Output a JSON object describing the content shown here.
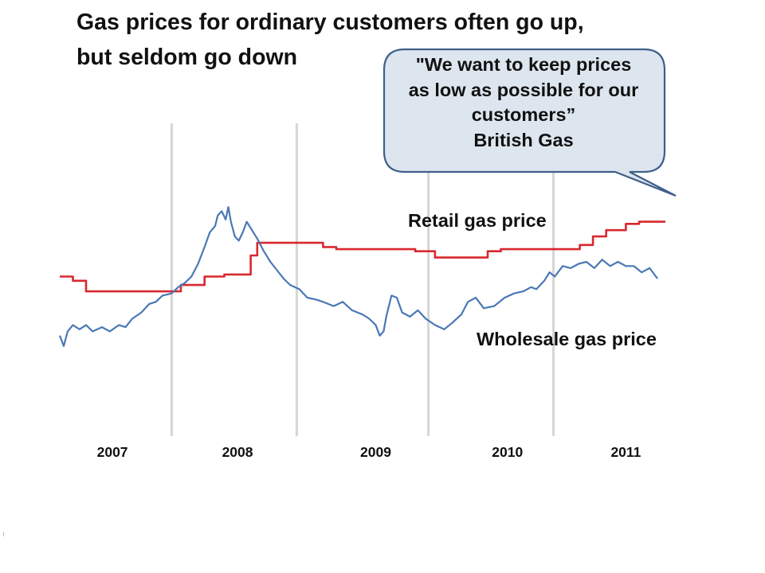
{
  "title": {
    "line1": "Gas prices for ordinary customers often go up,",
    "line2": "but seldom go down"
  },
  "callout": {
    "line1": "\"We want to keep prices",
    "line2": "as low as possible for our",
    "line3": "customers”",
    "line4": "British Gas",
    "fill": "#dde6ef",
    "border": "#3f5f8a"
  },
  "chart_data": {
    "type": "line",
    "x_unit": "year",
    "xlim": [
      2007.0,
      2011.6
    ],
    "ylim": [
      0,
      100
    ],
    "year_lines": [
      2007.85,
      2008.8,
      2009.8,
      2010.75
    ],
    "x_tick_labels": [
      {
        "x": 2007.4,
        "label": "2007"
      },
      {
        "x": 2008.35,
        "label": "2008"
      },
      {
        "x": 2009.4,
        "label": "2009"
      },
      {
        "x": 2010.4,
        "label": "2010"
      },
      {
        "x": 2011.3,
        "label": "2011"
      }
    ],
    "series": [
      {
        "name": "Retail gas price",
        "color": "#d8282f",
        "step": true,
        "points": [
          [
            2007.0,
            50
          ],
          [
            2007.1,
            48
          ],
          [
            2007.2,
            43
          ],
          [
            2007.35,
            43
          ],
          [
            2007.85,
            43
          ],
          [
            2007.92,
            46
          ],
          [
            2008.1,
            50
          ],
          [
            2008.25,
            51
          ],
          [
            2008.4,
            51
          ],
          [
            2008.45,
            60
          ],
          [
            2008.5,
            66
          ],
          [
            2008.9,
            66
          ],
          [
            2009.0,
            64
          ],
          [
            2009.1,
            63
          ],
          [
            2009.3,
            63
          ],
          [
            2009.7,
            62
          ],
          [
            2009.8,
            62
          ],
          [
            2009.85,
            59
          ],
          [
            2010.05,
            59
          ],
          [
            2010.2,
            59
          ],
          [
            2010.25,
            62
          ],
          [
            2010.35,
            63
          ],
          [
            2010.9,
            63
          ],
          [
            2010.95,
            65
          ],
          [
            2011.05,
            69
          ],
          [
            2011.15,
            72
          ],
          [
            2011.3,
            75
          ],
          [
            2011.4,
            76
          ],
          [
            2011.6,
            76
          ]
        ]
      },
      {
        "name": "Wholesale gas price",
        "color": "#4a78b5",
        "step": false,
        "points": [
          [
            2007.0,
            22
          ],
          [
            2007.03,
            17
          ],
          [
            2007.06,
            24
          ],
          [
            2007.1,
            27
          ],
          [
            2007.15,
            25
          ],
          [
            2007.2,
            27
          ],
          [
            2007.25,
            24
          ],
          [
            2007.32,
            26
          ],
          [
            2007.38,
            24
          ],
          [
            2007.45,
            27
          ],
          [
            2007.5,
            26
          ],
          [
            2007.55,
            30
          ],
          [
            2007.62,
            33
          ],
          [
            2007.68,
            37
          ],
          [
            2007.73,
            38
          ],
          [
            2007.78,
            41
          ],
          [
            2007.85,
            42
          ],
          [
            2007.9,
            45
          ],
          [
            2007.95,
            47
          ],
          [
            2008.0,
            50
          ],
          [
            2008.05,
            56
          ],
          [
            2008.1,
            64
          ],
          [
            2008.14,
            71
          ],
          [
            2008.18,
            74
          ],
          [
            2008.2,
            79
          ],
          [
            2008.23,
            81
          ],
          [
            2008.26,
            77
          ],
          [
            2008.28,
            83
          ],
          [
            2008.3,
            76
          ],
          [
            2008.33,
            69
          ],
          [
            2008.36,
            67
          ],
          [
            2008.39,
            71
          ],
          [
            2008.42,
            76
          ],
          [
            2008.46,
            72
          ],
          [
            2008.5,
            68
          ],
          [
            2008.55,
            62
          ],
          [
            2008.6,
            57
          ],
          [
            2008.65,
            53
          ],
          [
            2008.7,
            49
          ],
          [
            2008.75,
            46
          ],
          [
            2008.82,
            44
          ],
          [
            2008.88,
            40
          ],
          [
            2008.95,
            39
          ],
          [
            2009.0,
            38
          ],
          [
            2009.08,
            36
          ],
          [
            2009.15,
            38
          ],
          [
            2009.22,
            34
          ],
          [
            2009.3,
            32
          ],
          [
            2009.35,
            30
          ],
          [
            2009.4,
            27
          ],
          [
            2009.43,
            22
          ],
          [
            2009.46,
            24
          ],
          [
            2009.48,
            31
          ],
          [
            2009.52,
            41
          ],
          [
            2009.56,
            40
          ],
          [
            2009.6,
            33
          ],
          [
            2009.66,
            31
          ],
          [
            2009.72,
            34
          ],
          [
            2009.78,
            30
          ],
          [
            2009.85,
            27
          ],
          [
            2009.92,
            25
          ],
          [
            2009.98,
            28
          ],
          [
            2010.05,
            32
          ],
          [
            2010.1,
            38
          ],
          [
            2010.16,
            40
          ],
          [
            2010.22,
            35
          ],
          [
            2010.3,
            36
          ],
          [
            2010.38,
            40
          ],
          [
            2010.45,
            42
          ],
          [
            2010.52,
            43
          ],
          [
            2010.58,
            45
          ],
          [
            2010.62,
            44
          ],
          [
            2010.68,
            48
          ],
          [
            2010.72,
            52
          ],
          [
            2010.76,
            50
          ],
          [
            2010.82,
            55
          ],
          [
            2010.88,
            54
          ],
          [
            2010.94,
            56
          ],
          [
            2011.0,
            57
          ],
          [
            2011.06,
            54
          ],
          [
            2011.12,
            58
          ],
          [
            2011.18,
            55
          ],
          [
            2011.24,
            57
          ],
          [
            2011.3,
            55
          ],
          [
            2011.36,
            55
          ],
          [
            2011.42,
            52
          ],
          [
            2011.48,
            54
          ],
          [
            2011.54,
            49
          ]
        ]
      }
    ]
  }
}
